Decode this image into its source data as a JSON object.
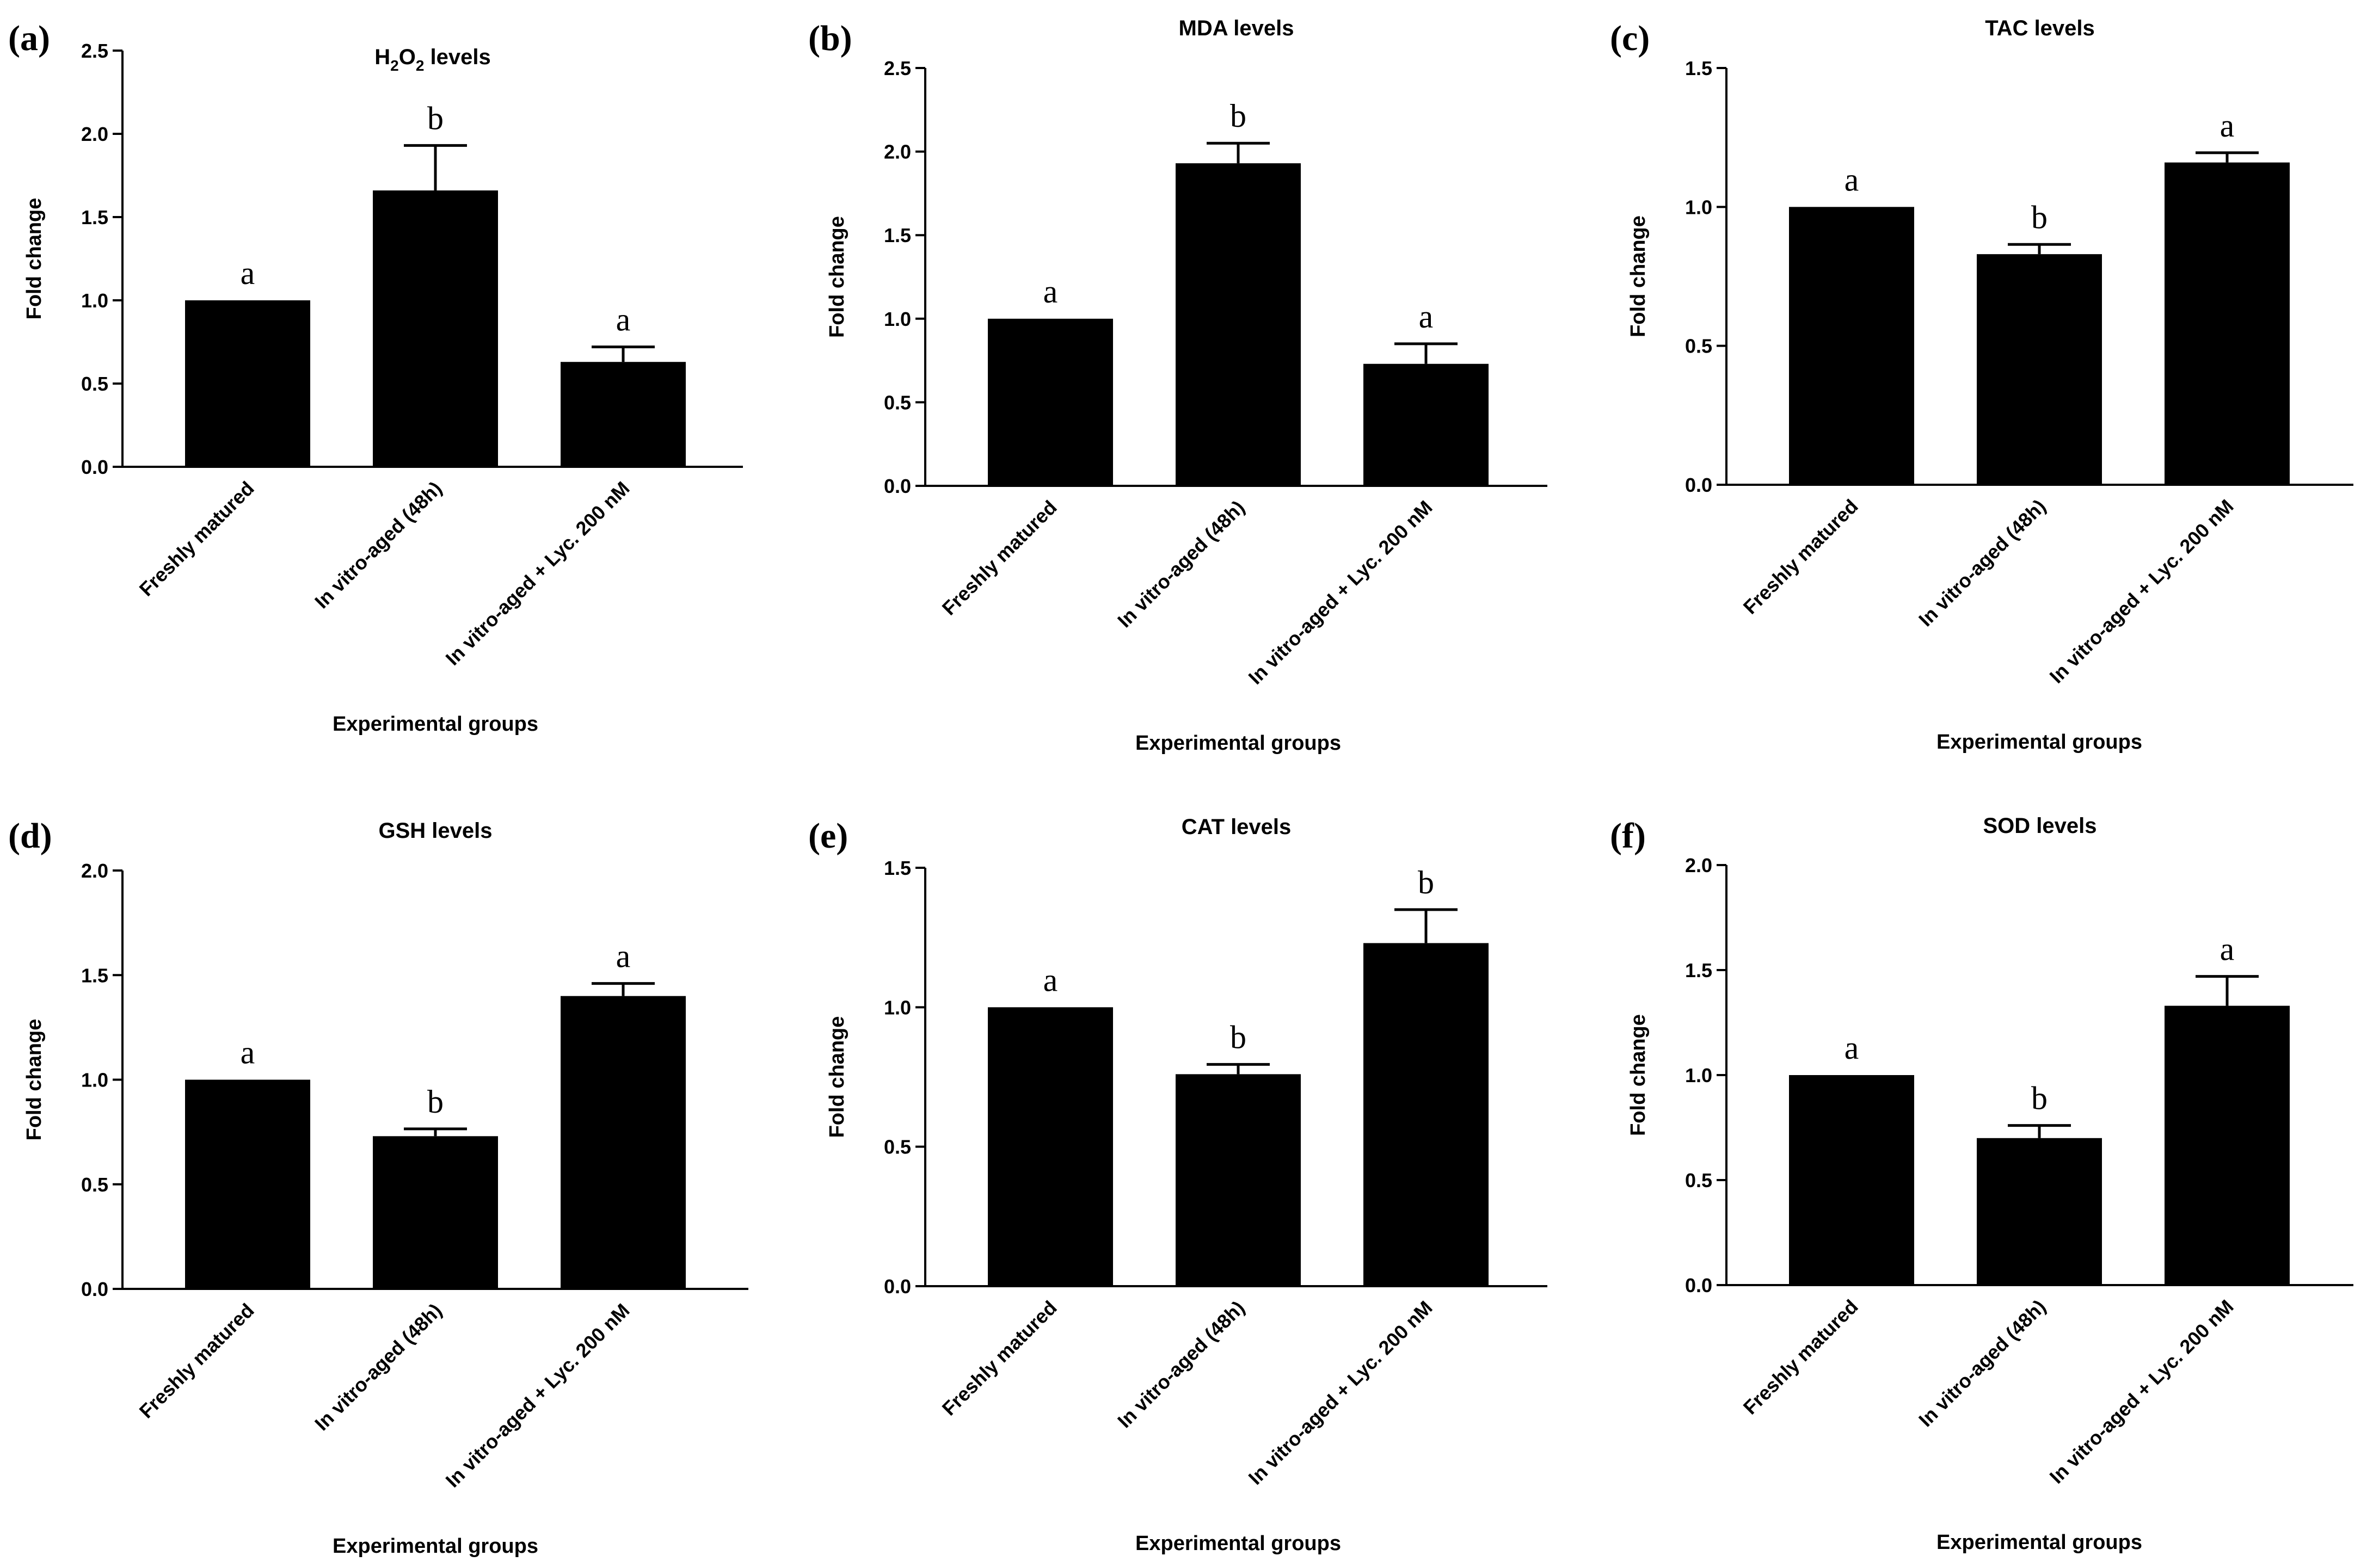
{
  "figure": {
    "colors": {
      "bar": "#000000",
      "axis": "#000000",
      "background": "#ffffff"
    }
  },
  "chart_data": [
    {
      "type": "bar",
      "panel_label": "(a)",
      "title": "H",
      "title_sub1": "2",
      "title_mid": "O",
      "title_sub2": "2",
      "title_end": " levels",
      "xlabel": "Experimental groups",
      "ylabel": "Fold change",
      "categories": [
        "Freshly matured",
        "In vitro-aged (48h)",
        "In vitro-aged + Lyc. 200 nM"
      ],
      "values": [
        1.0,
        1.66,
        0.63
      ],
      "errors": [
        0,
        0.27,
        0.09
      ],
      "letters": [
        "a",
        "b",
        "a"
      ],
      "ylim": [
        0,
        2.5
      ],
      "yticks": [
        0,
        0.5,
        1.0,
        1.5,
        2.0,
        2.5
      ],
      "yticklabels": [
        "0.0",
        "0.5",
        "1.0",
        "1.5",
        "2.0",
        "2.5"
      ]
    },
    {
      "type": "bar",
      "panel_label": "(b)",
      "title": "MDA levels",
      "xlabel": "Experimental groups",
      "ylabel": "Fold change",
      "categories": [
        "Freshly matured",
        "In vitro-aged (48h)",
        "In vitro-aged + Lyc. 200 nM"
      ],
      "values": [
        1.0,
        1.93,
        0.73
      ],
      "errors": [
        0,
        0.12,
        0.12
      ],
      "letters": [
        "a",
        "b",
        "a"
      ],
      "ylim": [
        0,
        2.5
      ],
      "yticks": [
        0,
        0.5,
        1.0,
        1.5,
        2.0,
        2.5
      ],
      "yticklabels": [
        "0.0",
        "0.5",
        "1.0",
        "1.5",
        "2.0",
        "2.5"
      ]
    },
    {
      "type": "bar",
      "panel_label": "(c)",
      "title": "TAC levels",
      "xlabel": "Experimental groups",
      "ylabel": "Fold change",
      "categories": [
        "Freshly matured",
        "In vitro-aged (48h)",
        "In vitro-aged + Lyc. 200 nM"
      ],
      "values": [
        1.0,
        0.83,
        1.16
      ],
      "errors": [
        0,
        0.035,
        0.035
      ],
      "letters": [
        "a",
        "b",
        "a"
      ],
      "ylim": [
        0,
        1.5
      ],
      "yticks": [
        0,
        0.5,
        1.0,
        1.5
      ],
      "yticklabels": [
        "0.0",
        "0.5",
        "1.0",
        "1.5"
      ]
    },
    {
      "type": "bar",
      "panel_label": "(d)",
      "title": "GSH levels",
      "xlabel": "Experimental groups",
      "ylabel": "Fold change",
      "categories": [
        "Freshly matured",
        "In vitro-aged (48h)",
        "In vitro-aged + Lyc. 200 nM"
      ],
      "values": [
        1.0,
        0.73,
        1.4
      ],
      "errors": [
        0,
        0.035,
        0.06
      ],
      "letters": [
        "a",
        "b",
        "a"
      ],
      "ylim": [
        0,
        2.0
      ],
      "yticks": [
        0,
        0.5,
        1.0,
        1.5,
        2.0
      ],
      "yticklabels": [
        "0.0",
        "0.5",
        "1.0",
        "1.5",
        "2.0"
      ]
    },
    {
      "type": "bar",
      "panel_label": "(e)",
      "title": "CAT levels",
      "xlabel": "Experimental groups",
      "ylabel": "Fold change",
      "categories": [
        "Freshly matured",
        "In vitro-aged (48h)",
        "In vitro-aged + Lyc. 200 nM"
      ],
      "values": [
        1.0,
        0.76,
        1.23
      ],
      "errors": [
        0,
        0.035,
        0.12
      ],
      "letters": [
        "a",
        "b",
        "b"
      ],
      "ylim": [
        0,
        1.5
      ],
      "yticks": [
        0,
        0.5,
        1.0,
        1.5
      ],
      "yticklabels": [
        "0.0",
        "0.5",
        "1.0",
        "1.5"
      ]
    },
    {
      "type": "bar",
      "panel_label": "(f)",
      "title": "SOD levels",
      "xlabel": "Experimental groups",
      "ylabel": "Fold change",
      "categories": [
        "Freshly matured",
        "In vitro-aged (48h)",
        "In vitro-aged + Lyc. 200 nM"
      ],
      "values": [
        1.0,
        0.7,
        1.33
      ],
      "errors": [
        0,
        0.06,
        0.14
      ],
      "letters": [
        "a",
        "b",
        "a"
      ],
      "ylim": [
        0,
        2.0
      ],
      "yticks": [
        0,
        0.5,
        1.0,
        1.5,
        2.0
      ],
      "yticklabels": [
        "0.0",
        "0.5",
        "1.0",
        "1.5",
        "2.0"
      ]
    }
  ]
}
